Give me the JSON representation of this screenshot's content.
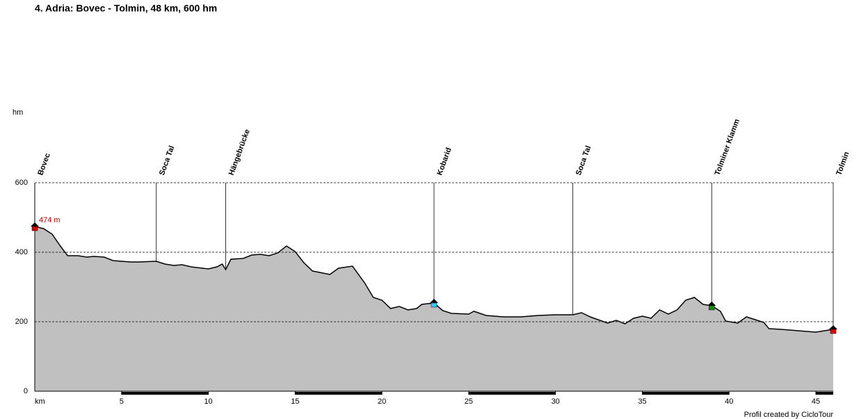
{
  "chart_data": {
    "type": "area",
    "title": "4. Adria: Bovec - Tolmin, 48 km, 600 hm",
    "y_label": "hm",
    "x_label": "km",
    "footer": "Profil created by CicloTour",
    "xlim": [
      0,
      46
    ],
    "ylim": [
      0,
      600
    ],
    "xticks": [
      5,
      10,
      15,
      20,
      25,
      30,
      35,
      40,
      45
    ],
    "yticks": [
      0,
      200,
      400,
      600
    ],
    "grid": true,
    "fill_color": "#c0c0c0",
    "line_color": "#000000",
    "x": [
      0,
      0.5,
      1,
      1.5,
      1.9,
      2.5,
      3,
      3.4,
      4,
      4.5,
      5,
      5.5,
      6,
      7,
      7.5,
      8,
      8.5,
      9,
      10,
      10.5,
      10.8,
      11,
      11.3,
      12,
      12.5,
      13,
      13.5,
      14,
      14.5,
      15,
      15.5,
      16,
      17,
      17.5,
      18.3,
      19,
      19.5,
      20,
      20.5,
      21,
      21.5,
      22,
      22.3,
      23,
      23.5,
      24,
      25,
      25.3,
      26,
      27,
      28,
      29,
      30,
      31,
      31.5,
      32,
      33,
      33.5,
      34,
      34.5,
      35,
      35.5,
      36,
      36.5,
      37,
      37.5,
      38,
      38.5,
      39,
      39.5,
      39.8,
      40.5,
      41,
      41.5,
      42,
      42.3,
      43,
      44,
      45,
      46
    ],
    "values": [
      474,
      468,
      452,
      416,
      390,
      390,
      386,
      388,
      386,
      376,
      374,
      372,
      372,
      374,
      366,
      362,
      364,
      358,
      352,
      358,
      366,
      350,
      380,
      382,
      392,
      394,
      390,
      398,
      418,
      402,
      370,
      346,
      336,
      354,
      360,
      312,
      270,
      262,
      238,
      244,
      234,
      238,
      250,
      254,
      232,
      224,
      222,
      230,
      218,
      214,
      214,
      218,
      220,
      220,
      226,
      214,
      196,
      204,
      194,
      210,
      216,
      210,
      234,
      222,
      234,
      262,
      270,
      250,
      246,
      230,
      202,
      196,
      214,
      206,
      198,
      180,
      178,
      174,
      170,
      178
    ],
    "start_label": "474 m",
    "waypoints": [
      {
        "name": "Bovec",
        "x": 0,
        "color": "#e00000"
      },
      {
        "name": "Soca Tal",
        "x": 7
      },
      {
        "name": "Hängebrücke",
        "x": 11
      },
      {
        "name": "Kobarid",
        "x": 23,
        "color": "#33ccff"
      },
      {
        "name": "Soca Tal",
        "x": 31
      },
      {
        "name": "Tolminer Klamm",
        "x": 39,
        "color": "#1a8c1a"
      },
      {
        "name": "Tolmin",
        "x": 46,
        "color": "#e00000"
      }
    ]
  }
}
